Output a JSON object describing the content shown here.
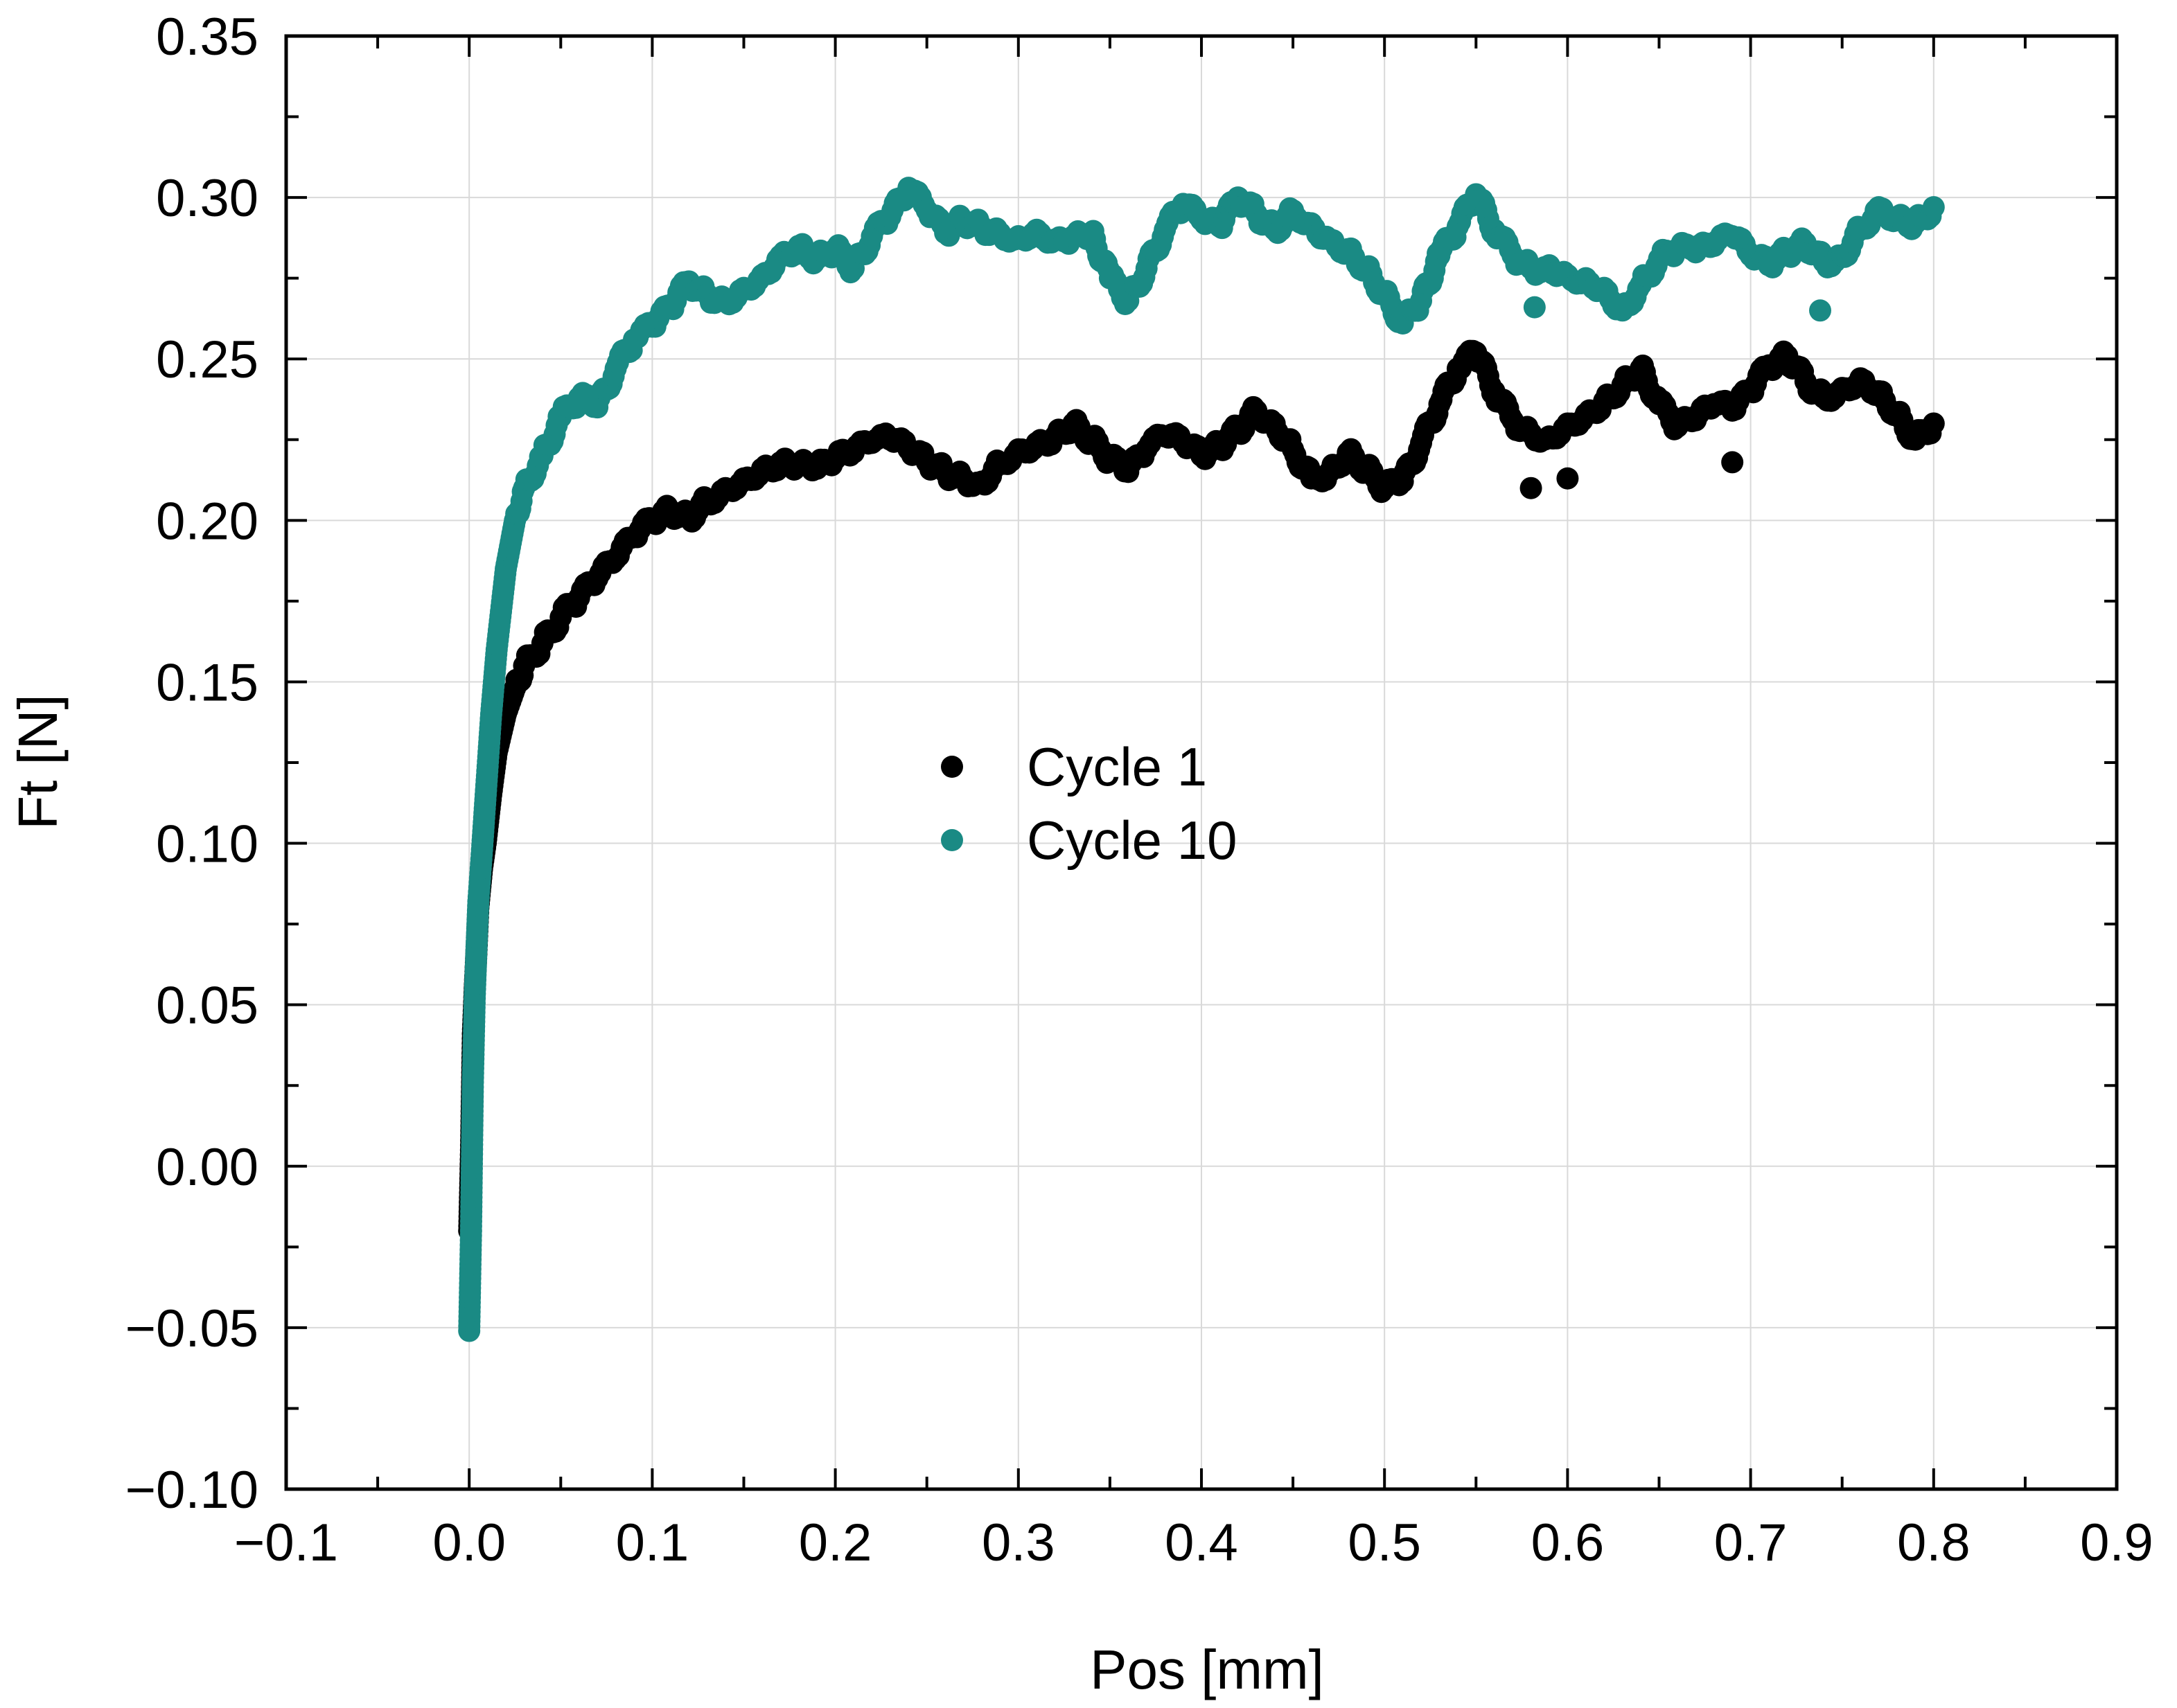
{
  "chart_data": {
    "type": "scatter",
    "xlabel": "Pos [mm]",
    "ylabel": "Ft [N]",
    "xlim": [
      -0.1,
      0.9
    ],
    "ylim": [
      -0.1,
      0.35
    ],
    "x_ticks": [
      -0.1,
      0.0,
      0.1,
      0.2,
      0.3,
      0.4,
      0.5,
      0.6,
      0.7,
      0.8,
      0.9
    ],
    "x_tick_labels": [
      "−0.1",
      "0.0",
      "0.1",
      "0.2",
      "0.3",
      "0.4",
      "0.5",
      "0.6",
      "0.7",
      "0.8",
      "0.9"
    ],
    "y_ticks": [
      -0.1,
      -0.05,
      0.0,
      0.05,
      0.1,
      0.15,
      0.2,
      0.25,
      0.3,
      0.35
    ],
    "y_tick_labels": [
      "−0.10",
      "−0.05",
      "0.00",
      "0.05",
      "0.10",
      "0.15",
      "0.20",
      "0.25",
      "0.30",
      "0.35"
    ],
    "grid": true,
    "legend_position": "center",
    "series": [
      {
        "name": "Cycle 1",
        "color": "#000000",
        "x": [
          0.0,
          0.001,
          0.002,
          0.003,
          0.004,
          0.005,
          0.007,
          0.009,
          0.012,
          0.015,
          0.02,
          0.025,
          0.03,
          0.04,
          0.05,
          0.06,
          0.07,
          0.08,
          0.09,
          0.1,
          0.11,
          0.12,
          0.13,
          0.14,
          0.15,
          0.16,
          0.17,
          0.18,
          0.19,
          0.2,
          0.21,
          0.22,
          0.23,
          0.24,
          0.25,
          0.26,
          0.27,
          0.28,
          0.29,
          0.3,
          0.31,
          0.32,
          0.33,
          0.34,
          0.35,
          0.36,
          0.37,
          0.38,
          0.39,
          0.4,
          0.41,
          0.42,
          0.43,
          0.44,
          0.45,
          0.46,
          0.47,
          0.48,
          0.49,
          0.5,
          0.51,
          0.52,
          0.53,
          0.54,
          0.55,
          0.56,
          0.57,
          0.58,
          0.59,
          0.6,
          0.61,
          0.62,
          0.63,
          0.64,
          0.65,
          0.66,
          0.67,
          0.68,
          0.69,
          0.7,
          0.71,
          0.72,
          0.73,
          0.74,
          0.75,
          0.76,
          0.77,
          0.78,
          0.79,
          0.8
        ],
        "y": [
          -0.02,
          0.005,
          0.041,
          0.055,
          0.067,
          0.08,
          0.092,
          0.1,
          0.115,
          0.128,
          0.14,
          0.148,
          0.155,
          0.162,
          0.17,
          0.176,
          0.182,
          0.188,
          0.195,
          0.2,
          0.203,
          0.201,
          0.206,
          0.21,
          0.213,
          0.216,
          0.218,
          0.217,
          0.216,
          0.219,
          0.221,
          0.224,
          0.225,
          0.222,
          0.218,
          0.215,
          0.213,
          0.212,
          0.218,
          0.222,
          0.224,
          0.226,
          0.23,
          0.225,
          0.219,
          0.215,
          0.222,
          0.226,
          0.224,
          0.22,
          0.223,
          0.228,
          0.234,
          0.23,
          0.222,
          0.213,
          0.215,
          0.221,
          0.216,
          0.21,
          0.212,
          0.224,
          0.236,
          0.247,
          0.252,
          0.24,
          0.231,
          0.227,
          0.226,
          0.23,
          0.233,
          0.237,
          0.242,
          0.247,
          0.236,
          0.229,
          0.231,
          0.236,
          0.234,
          0.24,
          0.248,
          0.251,
          0.243,
          0.238,
          0.241,
          0.244,
          0.24,
          0.233,
          0.225,
          0.23
        ]
      },
      {
        "name": "Cycle 10",
        "color": "#1a8a84",
        "x": [
          0.0,
          0.001,
          0.002,
          0.003,
          0.004,
          0.005,
          0.007,
          0.009,
          0.012,
          0.015,
          0.02,
          0.025,
          0.03,
          0.04,
          0.05,
          0.06,
          0.07,
          0.08,
          0.09,
          0.1,
          0.11,
          0.12,
          0.13,
          0.14,
          0.15,
          0.16,
          0.17,
          0.18,
          0.19,
          0.2,
          0.21,
          0.22,
          0.23,
          0.24,
          0.25,
          0.26,
          0.27,
          0.28,
          0.29,
          0.3,
          0.31,
          0.32,
          0.33,
          0.34,
          0.35,
          0.36,
          0.37,
          0.38,
          0.39,
          0.4,
          0.41,
          0.42,
          0.43,
          0.44,
          0.45,
          0.46,
          0.47,
          0.48,
          0.49,
          0.5,
          0.51,
          0.52,
          0.53,
          0.54,
          0.55,
          0.56,
          0.57,
          0.58,
          0.59,
          0.6,
          0.61,
          0.62,
          0.63,
          0.64,
          0.65,
          0.66,
          0.67,
          0.68,
          0.69,
          0.7,
          0.71,
          0.72,
          0.73,
          0.74,
          0.75,
          0.76,
          0.77,
          0.78,
          0.79,
          0.8
        ],
        "y": [
          -0.051,
          -0.02,
          0.026,
          0.052,
          0.068,
          0.082,
          0.098,
          0.115,
          0.14,
          0.16,
          0.185,
          0.2,
          0.21,
          0.22,
          0.232,
          0.238,
          0.235,
          0.247,
          0.256,
          0.26,
          0.266,
          0.274,
          0.27,
          0.268,
          0.272,
          0.276,
          0.282,
          0.285,
          0.281,
          0.284,
          0.278,
          0.288,
          0.294,
          0.303,
          0.296,
          0.289,
          0.293,
          0.291,
          0.289,
          0.288,
          0.29,
          0.287,
          0.288,
          0.289,
          0.275,
          0.268,
          0.278,
          0.29,
          0.298,
          0.293,
          0.291,
          0.3,
          0.295,
          0.29,
          0.296,
          0.292,
          0.287,
          0.284,
          0.278,
          0.27,
          0.261,
          0.268,
          0.282,
          0.291,
          0.301,
          0.29,
          0.282,
          0.278,
          0.279,
          0.276,
          0.275,
          0.272,
          0.265,
          0.273,
          0.281,
          0.284,
          0.283,
          0.285,
          0.288,
          0.282,
          0.279,
          0.283,
          0.286,
          0.28,
          0.282,
          0.29,
          0.297,
          0.294,
          0.292,
          0.297
        ]
      }
    ],
    "outliers": [
      {
        "series": "Cycle 1",
        "x": 0.58,
        "y": 0.21
      },
      {
        "series": "Cycle 1",
        "x": 0.6,
        "y": 0.213
      },
      {
        "series": "Cycle 1",
        "x": 0.69,
        "y": 0.218
      },
      {
        "series": "Cycle 10",
        "x": 0.582,
        "y": 0.266
      },
      {
        "series": "Cycle 10",
        "x": 0.738,
        "y": 0.265
      }
    ]
  }
}
